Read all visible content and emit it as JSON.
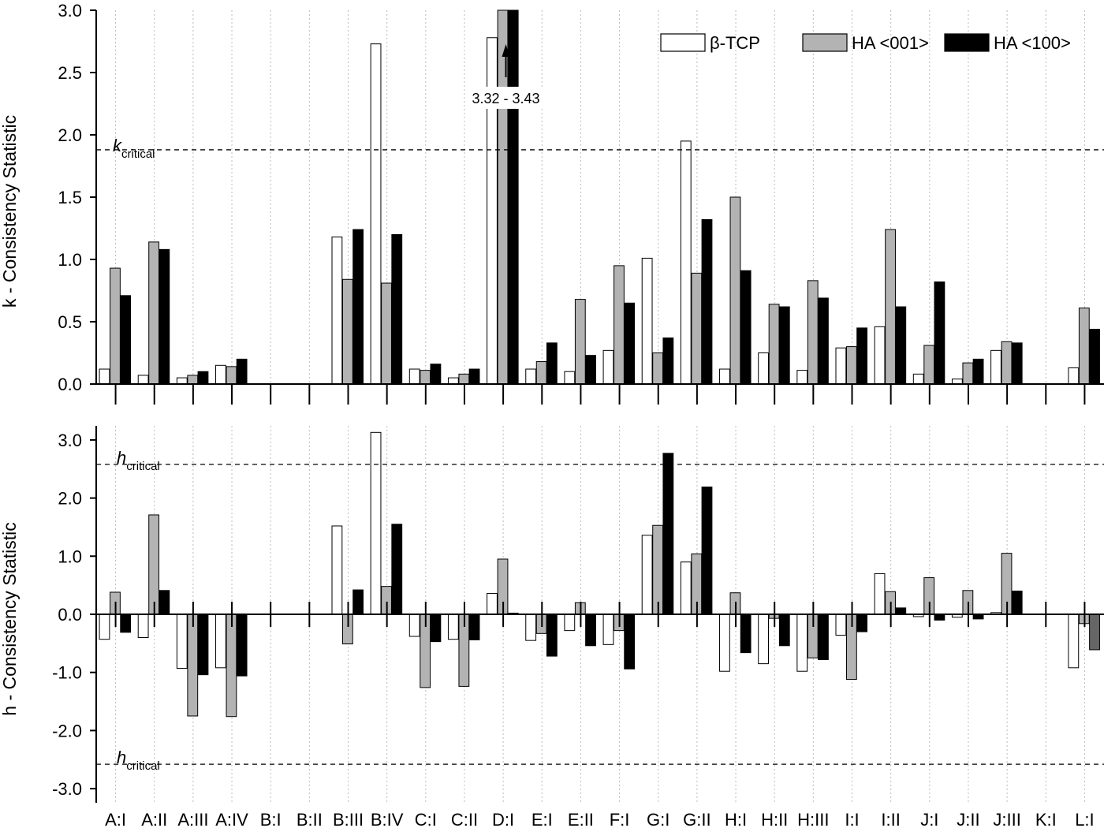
{
  "chart_data": [
    {
      "type": "bar",
      "ylabel": "k - Consistency Statistic",
      "ylim": [
        0,
        3.0
      ],
      "yticks": [
        "0.0",
        "0.5",
        "1.0",
        "1.5",
        "2.0",
        "2.5",
        "3.0"
      ],
      "ytick_values": [
        0,
        0.5,
        1.0,
        1.5,
        2.0,
        2.5,
        3.0
      ],
      "categories": [
        "A:I",
        "A:II",
        "A:III",
        "A:IV",
        "B:I",
        "B:II",
        "B:III",
        "B:IV",
        "C:I",
        "C:II",
        "D:I",
        "E:I",
        "E:II",
        "F:I",
        "G:I",
        "G:II",
        "H:I",
        "H:II",
        "H:III",
        "I:I",
        "I:II",
        "J:I",
        "J:II",
        "J:III",
        "K:I",
        "L:I"
      ],
      "series": [
        {
          "name": "β-TCP",
          "color": "#ffffff",
          "values": [
            0.12,
            0.07,
            0.05,
            0.15,
            null,
            null,
            1.18,
            2.73,
            0.12,
            0.05,
            2.78,
            0.12,
            0.1,
            0.27,
            1.01,
            1.95,
            0.12,
            0.25,
            0.11,
            0.29,
            0.46,
            0.08,
            0.04,
            0.27,
            null,
            0.13
          ]
        },
        {
          "name": "HA <001>",
          "color": "#b3b3b3",
          "values": [
            0.93,
            1.14,
            0.07,
            0.14,
            null,
            null,
            0.84,
            0.81,
            0.11,
            0.08,
            3.0,
            0.18,
            0.68,
            0.95,
            0.25,
            0.89,
            1.5,
            0.64,
            0.83,
            0.3,
            1.24,
            0.31,
            0.17,
            0.34,
            null,
            0.61
          ]
        },
        {
          "name": "HA <100>",
          "color": "#000000",
          "values": [
            0.71,
            1.08,
            0.1,
            0.2,
            null,
            null,
            1.24,
            1.2,
            0.16,
            0.12,
            3.0,
            0.33,
            0.23,
            0.65,
            0.37,
            1.32,
            0.91,
            0.62,
            0.69,
            0.45,
            0.62,
            0.82,
            0.2,
            0.33,
            null,
            0.44
          ]
        }
      ],
      "reference_line": {
        "value": 1.88,
        "label": "k",
        "label_sub": "critical"
      },
      "annotation": {
        "text": "3.32 - 3.43",
        "category": "D:I"
      },
      "legend_position": "top-right"
    },
    {
      "type": "bar",
      "ylabel": "h - Consistency Statistic",
      "xlabel": "",
      "ylim": [
        -3.3,
        3.3
      ],
      "yticks": [
        "-3.0",
        "-2.0",
        "-1.0",
        "0.0",
        "1.0",
        "2.0",
        "3.0"
      ],
      "ytick_values": [
        -3.0,
        -2.0,
        -1.0,
        0.0,
        1.0,
        2.0,
        3.0
      ],
      "categories": [
        "A:I",
        "A:II",
        "A:III",
        "A:IV",
        "B:I",
        "B:II",
        "B:III",
        "B:IV",
        "C:I",
        "C:II",
        "D:I",
        "E:I",
        "E:II",
        "F:I",
        "G:I",
        "G:II",
        "H:I",
        "H:II",
        "H:III",
        "I:I",
        "I:II",
        "J:I",
        "J:II",
        "J:III",
        "K:I",
        "L:I"
      ],
      "series": [
        {
          "name": "β-TCP",
          "color": "#ffffff",
          "values": [
            -0.43,
            -0.4,
            -0.93,
            -0.92,
            null,
            null,
            1.52,
            3.13,
            -0.38,
            -0.43,
            0.36,
            -0.45,
            -0.28,
            -0.52,
            1.36,
            0.9,
            -0.98,
            -0.85,
            -0.98,
            -0.36,
            0.7,
            -0.04,
            -0.05,
            0.03,
            null,
            -0.92
          ]
        },
        {
          "name": "HA <001>",
          "color": "#b3b3b3",
          "values": [
            0.38,
            1.71,
            -1.75,
            -1.76,
            null,
            null,
            -0.51,
            0.48,
            -1.26,
            -1.24,
            0.95,
            -0.33,
            0.2,
            -0.28,
            1.53,
            1.04,
            0.37,
            -0.07,
            -0.75,
            -1.12,
            0.39,
            0.63,
            0.41,
            1.05,
            null,
            -0.16
          ]
        },
        {
          "name": "HA <100>",
          "color": "#000000",
          "values": [
            -0.31,
            0.41,
            -1.04,
            -1.06,
            null,
            null,
            0.42,
            1.55,
            -0.47,
            -0.44,
            0.02,
            -0.72,
            -0.54,
            -0.94,
            2.77,
            2.19,
            -0.66,
            -0.54,
            -0.78,
            -0.3,
            0.11,
            -0.1,
            -0.08,
            0.4,
            null,
            -0.61
          ]
        }
      ],
      "reference_lines": [
        {
          "value": 2.58,
          "label": "h",
          "label_sub": "critical"
        },
        {
          "value": -2.58,
          "label": "h",
          "label_sub": "critical"
        }
      ],
      "tick_labels": [
        "A:I",
        "A:II",
        "A:III",
        "A:IV",
        "B:I",
        "B:II",
        "B:III",
        "B:IV",
        "C:I",
        "C:II",
        "D:I",
        "E:I",
        "E:II",
        "F:I",
        "G:I",
        "G:II",
        "H:I",
        "H:II",
        "H:III",
        "I:I",
        "I:II",
        "J:I",
        "J:II",
        "J:III",
        "K:I",
        "L:I"
      ]
    }
  ]
}
